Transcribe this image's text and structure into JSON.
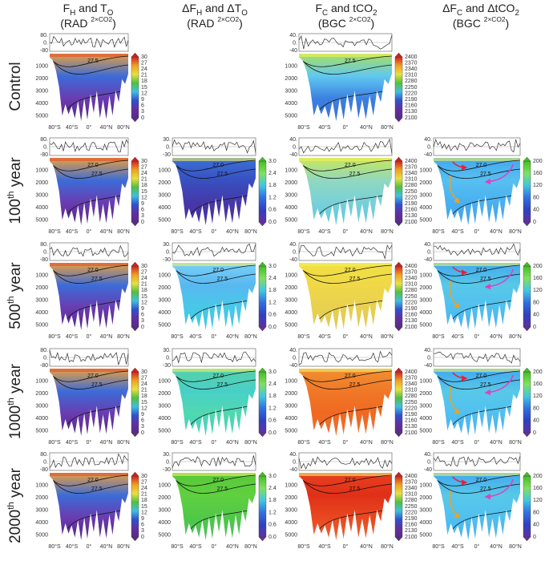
{
  "columns": [
    {
      "title": [
        {
          "t": "F",
          "k": "n"
        },
        {
          "t": "H",
          "k": "sub"
        },
        {
          "t": " and T",
          "k": "n"
        },
        {
          "t": "O",
          "k": "sub"
        }
      ],
      "subtitle": [
        {
          "t": "(RAD ",
          "k": "n"
        },
        {
          "t": "2×CO2",
          "k": "sup"
        },
        {
          "t": ")",
          "k": "n"
        }
      ],
      "flux_ticks": [
        "80.",
        "0.",
        "-80"
      ],
      "colorbar_ticks": [
        "30",
        "27",
        "24",
        "21",
        "18",
        "15",
        "12",
        "9",
        "6",
        "3",
        "0"
      ]
    },
    {
      "title": [
        {
          "t": "ΔF",
          "k": "n"
        },
        {
          "t": "H",
          "k": "sub"
        },
        {
          "t": " and ΔT",
          "k": "n"
        },
        {
          "t": "O",
          "k": "sub"
        }
      ],
      "subtitle": [
        {
          "t": "(RAD ",
          "k": "n"
        },
        {
          "t": "2×CO2",
          "k": "sup"
        },
        {
          "t": ")",
          "k": "n"
        }
      ],
      "flux_ticks": [
        "30.",
        "0.",
        "-30"
      ],
      "colorbar_ticks": [
        "3.0",
        "2.4",
        "1.8",
        "1.2",
        "0.6",
        "0.0"
      ]
    },
    {
      "title": [
        {
          "t": "F",
          "k": "n"
        },
        {
          "t": "C",
          "k": "sub"
        },
        {
          "t": " and tCO",
          "k": "n"
        },
        {
          "t": "2",
          "k": "sub"
        }
      ],
      "subtitle": [
        {
          "t": "(BGC ",
          "k": "n"
        },
        {
          "t": "2×CO2",
          "k": "sup"
        },
        {
          "t": ")",
          "k": "n"
        }
      ],
      "flux_ticks": [
        "40.",
        "0.",
        "-40"
      ],
      "colorbar_ticks": [
        "2400",
        "2370",
        "2340",
        "2310",
        "2280",
        "2250",
        "2220",
        "2190",
        "2160",
        "2130",
        "2100"
      ]
    },
    {
      "title": [
        {
          "t": "ΔF",
          "k": "n"
        },
        {
          "t": "C",
          "k": "sub"
        },
        {
          "t": " and ΔtCO",
          "k": "n"
        },
        {
          "t": "2",
          "k": "sub"
        }
      ],
      "subtitle": [
        {
          "t": "(BGC ",
          "k": "n"
        },
        {
          "t": "2×CO2",
          "k": "sup"
        },
        {
          "t": ")",
          "k": "n"
        }
      ],
      "flux_ticks": [
        "40.",
        "0.",
        "-40"
      ],
      "colorbar_ticks": [
        "200",
        "160",
        "120",
        "80",
        "40",
        "0"
      ]
    }
  ],
  "depth_ticks": [
    "1000",
    "2000",
    "3000",
    "4000",
    "5000"
  ],
  "lat_ticks": [
    "80°S",
    "40°S",
    "0°",
    "40°N",
    "80°N"
  ],
  "rows": [
    {
      "label": [
        {
          "t": "Control",
          "k": "n"
        }
      ],
      "panels": [
        {
          "contour_labels": [
            "27.5"
          ]
        },
        null,
        {
          "contour_labels": [
            "27.5"
          ]
        },
        null
      ]
    },
    {
      "label": [
        {
          "t": "100",
          "k": "n"
        },
        {
          "t": "th",
          "k": "sup"
        },
        {
          "t": " year",
          "k": "n"
        }
      ],
      "panels": [
        {
          "contour_labels": [
            "27.0",
            "27.5"
          ]
        },
        {
          "contour_labels": [
            "27.0",
            "27.5"
          ]
        },
        {
          "contour_labels": [
            "27.0",
            "27.5"
          ]
        },
        {
          "contour_labels": [
            "27.0",
            "27.5"
          ]
        }
      ]
    },
    {
      "label": [
        {
          "t": "500",
          "k": "n"
        },
        {
          "t": "th",
          "k": "sup"
        },
        {
          "t": " year",
          "k": "n"
        }
      ],
      "panels": [
        {
          "contour_labels": [
            "27.0",
            "27.5"
          ]
        },
        {
          "contour_labels": [
            "27.0",
            "27.5"
          ]
        },
        {
          "contour_labels": [
            "27.0",
            "27.5"
          ]
        },
        {
          "contour_labels": [
            "27.0",
            "27.5"
          ]
        }
      ]
    },
    {
      "label": [
        {
          "t": "1000",
          "k": "n"
        },
        {
          "t": "th",
          "k": "sup"
        },
        {
          "t": " year",
          "k": "n"
        }
      ],
      "panels": [
        {
          "contour_labels": [
            "27.0",
            "27.5"
          ]
        },
        {
          "contour_labels": [
            "27.0",
            "27.5"
          ]
        },
        {
          "contour_labels": [
            "27.0",
            "27.5"
          ]
        },
        {
          "contour_labels": [
            "27.0",
            "27.5"
          ]
        }
      ]
    },
    {
      "label": [
        {
          "t": "2000",
          "k": "n"
        },
        {
          "t": "th",
          "k": "sup"
        },
        {
          "t": " year",
          "k": "n"
        }
      ],
      "panels": [
        {
          "contour_labels": [
            "27.0",
            "27.5"
          ]
        },
        {
          "contour_labels": [
            "27.0",
            "27.5"
          ]
        },
        {
          "contour_labels": [
            "27.0",
            "27.5"
          ]
        },
        {
          "contour_labels": [
            "27.0",
            "27.5"
          ]
        }
      ]
    }
  ]
}
